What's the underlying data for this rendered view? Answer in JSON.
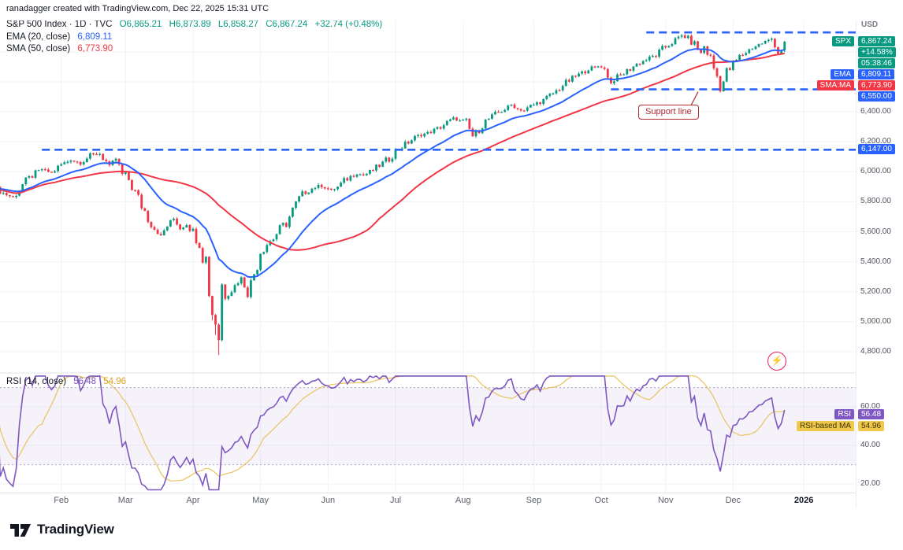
{
  "header": {
    "attribution": "ranadagger created with TradingView.com, Dec 22, 2025 15:31 UTC"
  },
  "symbol_legend": {
    "title": "S&P 500 Index · 1D · TVC",
    "open": "O6,865.21",
    "high": "H6,873.89",
    "low": "L6,858.27",
    "close": "C6,867.24",
    "change": "+32.74 (+0.48%)",
    "ema_label": "EMA (20, close)",
    "ema_value": "6,809.11",
    "sma_label": "SMA (50, close)",
    "sma_value": "6,773.90"
  },
  "rsi_legend": {
    "label": "RSI (14, close)",
    "rsi_value": "56.48",
    "ma_value": "54.96"
  },
  "price_axis": {
    "currency": "USD",
    "spx_tag": "SPX",
    "last_price": "6,867.24",
    "ytd_change": "+14.58%",
    "countdown": "05:38:46",
    "ema_tag": "EMA",
    "ema_value": "6,809.11",
    "sma_tag": "SMA:MA",
    "sma_value": "6,773.90",
    "level_badges": [
      {
        "label": "6,550.00",
        "price": 6550
      },
      {
        "label": "6,147.00",
        "price": 6147
      }
    ],
    "ticks": [
      {
        "label": "6,400.00",
        "price": 6400
      },
      {
        "label": "6,200.00",
        "price": 6200
      },
      {
        "label": "6,000.00",
        "price": 6000
      },
      {
        "label": "5,800.00",
        "price": 5800
      },
      {
        "label": "5,600.00",
        "price": 5600
      },
      {
        "label": "5,400.00",
        "price": 5400
      },
      {
        "label": "5,200.00",
        "price": 5200
      },
      {
        "label": "5,000.00",
        "price": 5000
      },
      {
        "label": "4,800.00",
        "price": 4800
      }
    ]
  },
  "rsi_axis": {
    "ticks": [
      {
        "label": "60.00",
        "value": 60
      },
      {
        "label": "40.00",
        "value": 40
      },
      {
        "label": "20.00",
        "value": 20
      }
    ],
    "rsi_tag": "RSI",
    "rsi_value": "56.48",
    "ma_tag": "RSI-based MA",
    "ma_value": "54.96"
  },
  "time_axis": {
    "labels": [
      {
        "label": "Feb",
        "day": 21
      },
      {
        "label": "Mar",
        "day": 41
      },
      {
        "label": "Apr",
        "day": 62
      },
      {
        "label": "May",
        "day": 83
      },
      {
        "label": "Jun",
        "day": 104
      },
      {
        "label": "Jul",
        "day": 125
      },
      {
        "label": "Aug",
        "day": 146
      },
      {
        "label": "Sep",
        "day": 168
      },
      {
        "label": "Oct",
        "day": 189
      },
      {
        "label": "Nov",
        "day": 209
      },
      {
        "label": "Dec",
        "day": 230
      },
      {
        "label": "2026",
        "day": 252,
        "year": true
      }
    ]
  },
  "annotations": {
    "support_callout": "Support line"
  },
  "footer": {
    "brand": "TradingView"
  },
  "chart_data": {
    "type": "candlestick",
    "title": "S&P 500 Index · 1D · TVC",
    "currency": "USD",
    "ohlc": {
      "open": 6865.21,
      "high": 6873.89,
      "low": 6858.27,
      "close": 6867.24,
      "change": 32.74,
      "change_pct": 0.48
    },
    "ytd_change_pct": 14.58,
    "ema20": 6809.11,
    "sma50": 6773.9,
    "rsi14": 56.48,
    "rsi_ma14": 54.96,
    "total_days": 246,
    "price_axis_range": [
      4690,
      7020
    ],
    "rsi_axis_range": [
      17,
      76
    ],
    "rsi_band": [
      30,
      70
    ],
    "price_gridlines": [
      6800,
      6600,
      6400,
      6200,
      6000,
      5800,
      5600,
      5400,
      5200,
      5000,
      4800
    ],
    "levels": [
      {
        "price": 6930,
        "from_day": 203,
        "label": "",
        "role": "resistance"
      },
      {
        "price": 6550,
        "from_day": 192,
        "label": "6,550.00",
        "role": "support"
      },
      {
        "price": 6147,
        "from_day": 15,
        "label": "6,147.00",
        "role": "support"
      }
    ],
    "price_anchors": [
      [
        0,
        5900
      ],
      [
        3,
        5858
      ],
      [
        6,
        5828
      ],
      [
        9,
        5915
      ],
      [
        12,
        5975
      ],
      [
        15,
        6018
      ],
      [
        18,
        5992
      ],
      [
        21,
        6048
      ],
      [
        24,
        6078
      ],
      [
        27,
        6058
      ],
      [
        30,
        6108
      ],
      [
        33,
        6122
      ],
      [
        36,
        6040
      ],
      [
        38,
        6088
      ],
      [
        40,
        5978
      ],
      [
        42,
        5948
      ],
      [
        44,
        5858
      ],
      [
        46,
        5778
      ],
      [
        48,
        5698
      ],
      [
        50,
        5628
      ],
      [
        52,
        5572
      ],
      [
        54,
        5642
      ],
      [
        56,
        5688
      ],
      [
        58,
        5622
      ],
      [
        60,
        5652
      ],
      [
        62,
        5598
      ],
      [
        64,
        5538
      ],
      [
        66,
        5408
      ],
      [
        68,
        5078
      ],
      [
        70,
        4888
      ],
      [
        71,
        5248
      ],
      [
        73,
        5178
      ],
      [
        75,
        5238
      ],
      [
        77,
        5288
      ],
      [
        79,
        5178
      ],
      [
        81,
        5328
      ],
      [
        83,
        5478
      ],
      [
        85,
        5518
      ],
      [
        87,
        5558
      ],
      [
        89,
        5618
      ],
      [
        91,
        5658
      ],
      [
        93,
        5738
      ],
      [
        95,
        5818
      ],
      [
        97,
        5868
      ],
      [
        99,
        5888
      ],
      [
        101,
        5908
      ],
      [
        103,
        5898
      ],
      [
        105,
        5878
      ],
      [
        107,
        5898
      ],
      [
        109,
        5938
      ],
      [
        111,
        5968
      ],
      [
        113,
        5988
      ],
      [
        115,
        5978
      ],
      [
        117,
        5998
      ],
      [
        119,
        6028
      ],
      [
        121,
        6058
      ],
      [
        123,
        6088
      ],
      [
        125,
        6138
      ],
      [
        127,
        6168
      ],
      [
        129,
        6198
      ],
      [
        131,
        6228
      ],
      [
        133,
        6248
      ],
      [
        135,
        6258
      ],
      [
        137,
        6278
      ],
      [
        139,
        6298
      ],
      [
        141,
        6328
      ],
      [
        143,
        6358
      ],
      [
        145,
        6338
      ],
      [
        147,
        6328
      ],
      [
        149,
        6238
      ],
      [
        151,
        6288
      ],
      [
        153,
        6338
      ],
      [
        155,
        6368
      ],
      [
        157,
        6398
      ],
      [
        159,
        6418
      ],
      [
        161,
        6448
      ],
      [
        163,
        6418
      ],
      [
        165,
        6408
      ],
      [
        167,
        6438
      ],
      [
        169,
        6458
      ],
      [
        171,
        6478
      ],
      [
        173,
        6508
      ],
      [
        175,
        6538
      ],
      [
        177,
        6578
      ],
      [
        179,
        6608
      ],
      [
        181,
        6638
      ],
      [
        183,
        6658
      ],
      [
        185,
        6688
      ],
      [
        187,
        6698
      ],
      [
        189,
        6708
      ],
      [
        191,
        6648
      ],
      [
        192,
        6588
      ],
      [
        194,
        6628
      ],
      [
        196,
        6658
      ],
      [
        198,
        6688
      ],
      [
        200,
        6718
      ],
      [
        202,
        6738
      ],
      [
        204,
        6758
      ],
      [
        206,
        6778
      ],
      [
        208,
        6818
      ],
      [
        210,
        6848
      ],
      [
        212,
        6878
      ],
      [
        214,
        6908
      ],
      [
        216,
        6888
      ],
      [
        218,
        6848
      ],
      [
        220,
        6788
      ],
      [
        221,
        6838
      ],
      [
        223,
        6748
      ],
      [
        225,
        6638
      ],
      [
        226,
        6548
      ],
      [
        228,
        6658
      ],
      [
        230,
        6718
      ],
      [
        232,
        6768
      ],
      [
        234,
        6798
      ],
      [
        236,
        6828
      ],
      [
        238,
        6848
      ],
      [
        240,
        6868
      ],
      [
        242,
        6888
      ],
      [
        243,
        6848
      ],
      [
        244,
        6792
      ],
      [
        245,
        6812
      ],
      [
        246,
        6867.24
      ]
    ],
    "colors": {
      "up": "#089981",
      "down": "#F23645",
      "ema": "#2962FF",
      "sma": "#F23645",
      "level": "#2962FF",
      "rsi": "#7E57C2",
      "rsi_ma": "#E9C35F",
      "band_fill": "rgba(126,87,194,0.08)",
      "callout": "#B22833"
    }
  }
}
